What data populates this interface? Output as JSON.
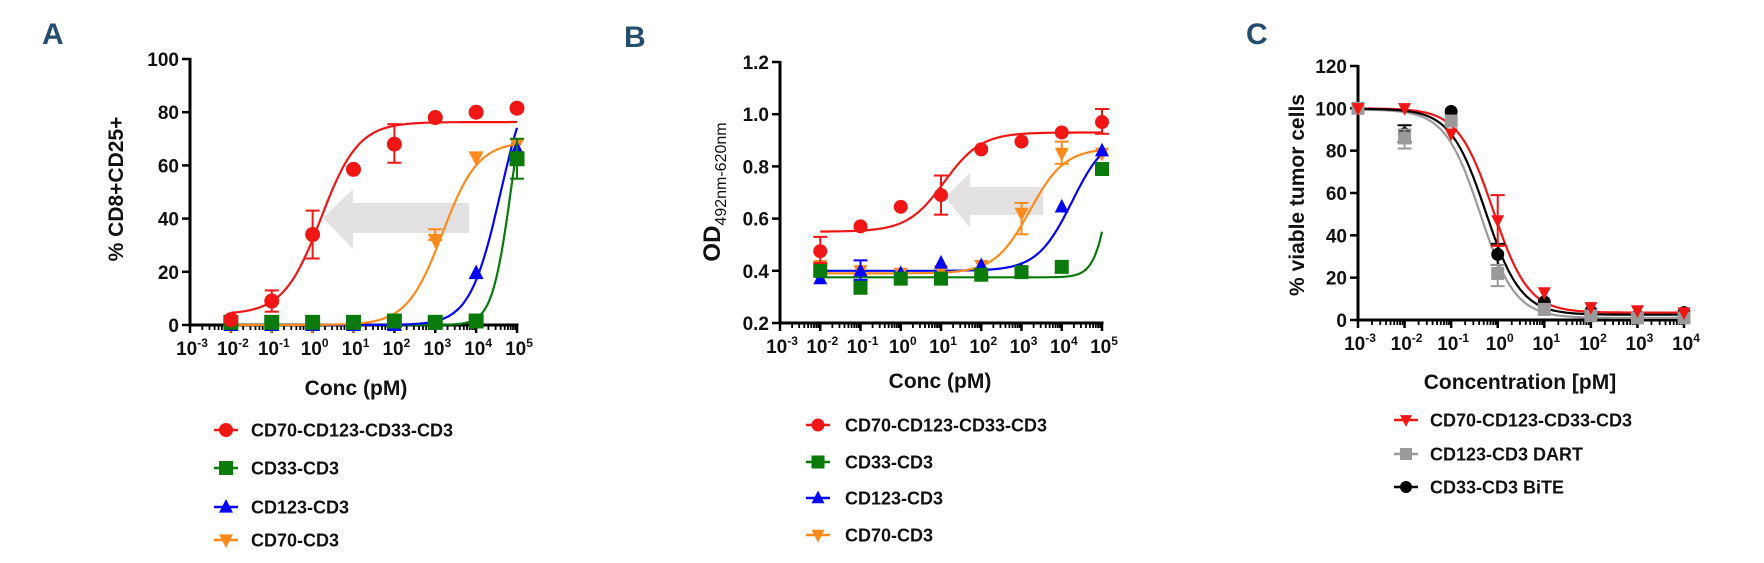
{
  "figure": {
    "panels": [
      "A",
      "B",
      "C"
    ]
  },
  "chart_data": [
    {
      "id": "A",
      "panel_label": "A",
      "type": "scatter",
      "subtype": "dose-response (log x) with fitted curves and error bars",
      "xlabel": "Conc (pM)",
      "ylabel": "% CD8+CD25+",
      "xscale": "log",
      "xlim_log10": [
        -3,
        5
      ],
      "x_ticks": [
        "10^-3",
        "10^-2",
        "10^-1",
        "10^0",
        "10^1",
        "10^2",
        "10^3",
        "10^4",
        "10^5"
      ],
      "ylim": [
        0,
        100
      ],
      "y_ticks": [
        "0",
        "20",
        "40",
        "60",
        "80",
        "100"
      ],
      "grid": false,
      "legend_position": "below",
      "annotation": "grey left-pointing arrow from the CD70-CD3 curve to the CD70-CD123-CD33-CD3 curve (leftward EC50 shift)",
      "x": [
        0.01,
        0.1,
        1,
        10,
        100,
        1000,
        10000,
        100000
      ],
      "series": [
        {
          "name": "CD70-CD123-CD33-CD3",
          "color": "#f11616",
          "marker": "circle",
          "values": [
            2,
            9,
            34,
            58.5,
            68,
            78,
            80,
            81.5
          ],
          "err_low": [
            null,
            5,
            25,
            null,
            61,
            null,
            null,
            null
          ],
          "err_high": [
            null,
            13,
            43,
            null,
            75.5,
            null,
            null,
            null
          ],
          "fit": {
            "bottom": 4,
            "top": 76.3,
            "ec50": 1.6,
            "hill": 0.95
          }
        },
        {
          "name": "CD33-CD3",
          "color": "#0a7a0a",
          "marker": "square",
          "values": [
            1,
            1,
            1,
            1,
            1.5,
            1,
            1.5,
            62.5
          ],
          "err_low": [
            null,
            null,
            null,
            null,
            null,
            null,
            null,
            55
          ],
          "err_high": [
            null,
            null,
            null,
            null,
            null,
            null,
            null,
            70
          ],
          "fit": {
            "bottom": 0,
            "top": 100,
            "ec50": 70000,
            "hill": 1.9
          }
        },
        {
          "name": "CD123-CD3",
          "color": "#0505f5",
          "marker": "triangle-up",
          "values": [
            0,
            0,
            0,
            0,
            0,
            0.5,
            19.5,
            66
          ],
          "err_low": [
            null,
            null,
            null,
            null,
            null,
            null,
            null,
            null
          ],
          "err_high": [
            null,
            null,
            null,
            null,
            null,
            null,
            null,
            null
          ],
          "fit": {
            "bottom": 0,
            "top": 100,
            "ec50": 40000,
            "hill": 1.15
          }
        },
        {
          "name": "CD70-CD3",
          "color": "#ff8a1c",
          "marker": "triangle-down",
          "values": [
            0,
            0,
            0,
            0,
            0.5,
            32,
            63,
            68
          ],
          "err_low": [
            null,
            null,
            null,
            null,
            null,
            32,
            null,
            null
          ],
          "err_high": [
            null,
            null,
            null,
            null,
            null,
            36,
            null,
            70
          ],
          "fit": {
            "bottom": 0,
            "top": 69,
            "ec50": 1500,
            "hill": 1.0
          }
        }
      ]
    },
    {
      "id": "B",
      "panel_label": "B",
      "type": "scatter",
      "subtype": "dose-response (log x) with fitted curves and error bars",
      "xlabel": "Conc (pM)",
      "ylabel": "OD",
      "ylabel_subscript": "492nm-620nm",
      "xscale": "log",
      "xlim_log10": [
        -3,
        5
      ],
      "x_ticks": [
        "10^-3",
        "10^-2",
        "10^-1",
        "10^0",
        "10^1",
        "10^2",
        "10^3",
        "10^4",
        "10^5"
      ],
      "ylim": [
        0.2,
        1.2
      ],
      "y_ticks": [
        "0.2",
        "0.4",
        "0.6",
        "0.8",
        "1.0",
        "1.2"
      ],
      "grid": false,
      "legend_position": "below",
      "annotation": "grey left-pointing arrow from the CD70-CD3 curve to the CD70-CD123-CD33-CD3 curve (leftward EC50 shift)",
      "x": [
        0.01,
        0.1,
        1,
        10,
        100,
        1000,
        10000,
        100000
      ],
      "series": [
        {
          "name": "CD70-CD123-CD33-CD3",
          "color": "#f11616",
          "marker": "circle",
          "values": [
            0.475,
            0.57,
            0.645,
            0.69,
            0.865,
            0.895,
            0.93,
            0.97
          ],
          "err_low": [
            0.43,
            null,
            null,
            0.615,
            null,
            null,
            null,
            0.925
          ],
          "err_high": [
            0.53,
            null,
            null,
            0.765,
            null,
            null,
            null,
            1.02
          ],
          "fit": {
            "bottom": 0.55,
            "top": 0.93,
            "ec50": 12,
            "hill": 0.95
          }
        },
        {
          "name": "CD33-CD3",
          "color": "#0a7a0a",
          "marker": "square",
          "values": [
            0.4,
            0.335,
            0.37,
            0.37,
            0.385,
            0.395,
            0.415,
            0.79
          ],
          "err_low": [
            null,
            null,
            null,
            null,
            null,
            null,
            null,
            null
          ],
          "err_high": [
            null,
            null,
            null,
            null,
            null,
            null,
            null,
            null
          ],
          "fit": {
            "bottom": 0.375,
            "top": 1.3,
            "ec50": 200000,
            "hill": 2.1
          }
        },
        {
          "name": "CD123-CD3",
          "color": "#0505f5",
          "marker": "triangle-up",
          "values": [
            0.37,
            0.4,
            0.39,
            0.43,
            0.42,
            0.4,
            0.645,
            0.86
          ],
          "err_low": [
            null,
            0.365,
            null,
            null,
            null,
            null,
            null,
            null
          ],
          "err_high": [
            null,
            0.44,
            null,
            null,
            null,
            null,
            null,
            null
          ],
          "fit": {
            "bottom": 0.4,
            "top": 0.93,
            "ec50": 18000,
            "hill": 1.0
          }
        },
        {
          "name": "CD70-CD3",
          "color": "#ff8a1c",
          "marker": "triangle-down",
          "values": [
            0.42,
            0.4,
            0.39,
            0.4,
            0.42,
            0.62,
            0.85,
            0.85
          ],
          "err_low": [
            null,
            null,
            null,
            null,
            null,
            0.54,
            0.81,
            null
          ],
          "err_high": [
            null,
            null,
            null,
            null,
            null,
            0.66,
            0.895,
            null
          ],
          "fit": {
            "bottom": 0.39,
            "top": 0.87,
            "ec50": 1600,
            "hill": 1.0
          }
        }
      ]
    },
    {
      "id": "C",
      "panel_label": "C",
      "type": "scatter",
      "subtype": "dose-response (log x) with fitted curves and error bars",
      "xlabel": "Concentration [pM]",
      "ylabel": "% viable tumor cells",
      "xscale": "log",
      "xlim_log10": [
        -3,
        4
      ],
      "x_ticks": [
        "10^-3",
        "10^-2",
        "10^-1",
        "10^0",
        "10^1",
        "10^2",
        "10^3",
        "10^4"
      ],
      "ylim": [
        0,
        120
      ],
      "y_ticks": [
        "0",
        "20",
        "40",
        "60",
        "80",
        "100",
        "120"
      ],
      "grid": false,
      "legend_position": "below",
      "x": [
        0.001,
        0.01,
        0.1,
        1,
        10,
        100,
        1000,
        10000
      ],
      "series": [
        {
          "name": "CD70-CD123-CD33-CD3",
          "color": "#f11616",
          "marker": "triangle-down",
          "values": [
            100,
            100,
            88,
            47,
            13,
            6,
            4.5,
            3.5
          ],
          "err_low": [
            null,
            null,
            null,
            35,
            null,
            null,
            null,
            null
          ],
          "err_high": [
            null,
            null,
            null,
            59,
            null,
            null,
            null,
            null
          ],
          "fit": {
            "bottom": 3.5,
            "top": 100,
            "ec50": 0.8,
            "hill": -1.15
          }
        },
        {
          "name": "CD123-CD3 DART",
          "color": "#9a9a9a",
          "marker": "square",
          "values": [
            100,
            86,
            94,
            22,
            5,
            2,
            1,
            1
          ],
          "err_low": [
            null,
            81,
            null,
            16,
            null,
            null,
            null,
            null
          ],
          "err_high": [
            null,
            90,
            null,
            26,
            null,
            null,
            null,
            null
          ],
          "fit": {
            "bottom": 1,
            "top": 99.5,
            "ec50": 0.42,
            "hill": -1.15
          }
        },
        {
          "name": "CD33-CD3 BiTE",
          "color": "#000000",
          "marker": "circle",
          "values": [
            100,
            88,
            98.5,
            31,
            8.5,
            4,
            2,
            3.5
          ],
          "err_low": [
            null,
            84,
            null,
            26,
            null,
            null,
            null,
            null
          ],
          "err_high": [
            null,
            92,
            null,
            36,
            null,
            null,
            null,
            null
          ],
          "fit": {
            "bottom": 2.5,
            "top": 99.8,
            "ec50": 0.55,
            "hill": -1.15
          }
        }
      ]
    }
  ]
}
